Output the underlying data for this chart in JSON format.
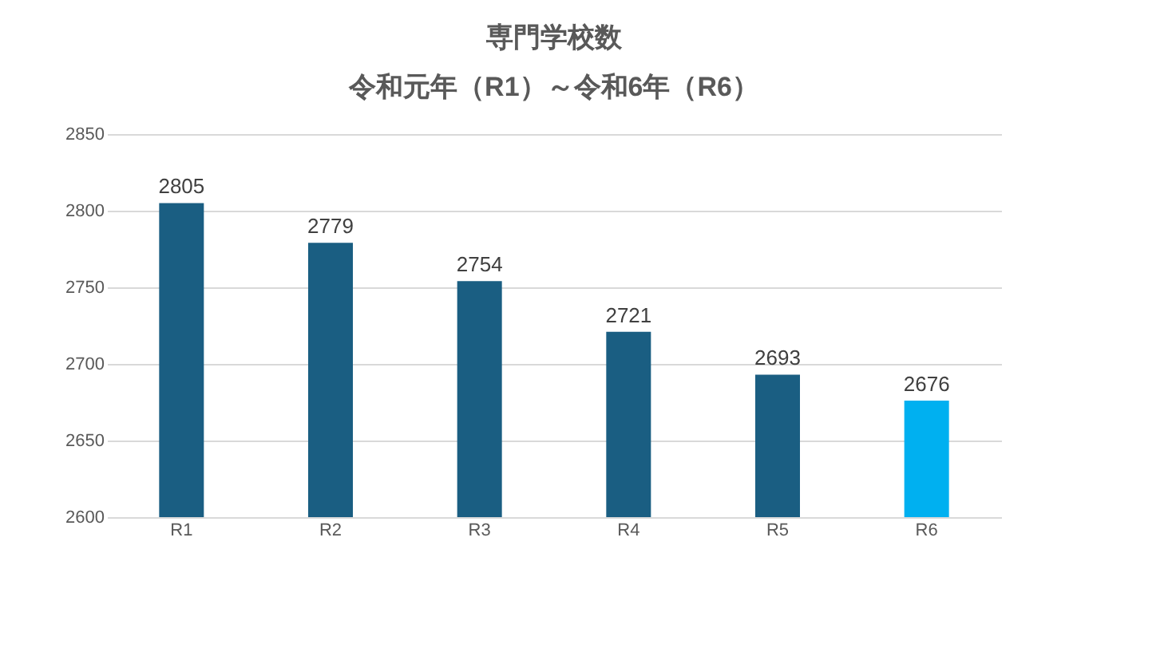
{
  "chart_data": {
    "type": "bar",
    "title": "専門学校数",
    "subtitle": "令和元年（R1）～令和6年（R6）",
    "categories": [
      "R1",
      "R2",
      "R3",
      "R4",
      "R5",
      "R6"
    ],
    "values": [
      2805,
      2779,
      2754,
      2721,
      2693,
      2676
    ],
    "colors": [
      "#1a5e82",
      "#1a5e82",
      "#1a5e82",
      "#1a5e82",
      "#1a5e82",
      "#00b0f0"
    ],
    "ylim": [
      2600,
      2850
    ],
    "yticks": [
      2600,
      2650,
      2700,
      2750,
      2800,
      2850
    ],
    "grid": "y",
    "data_labels": true
  }
}
